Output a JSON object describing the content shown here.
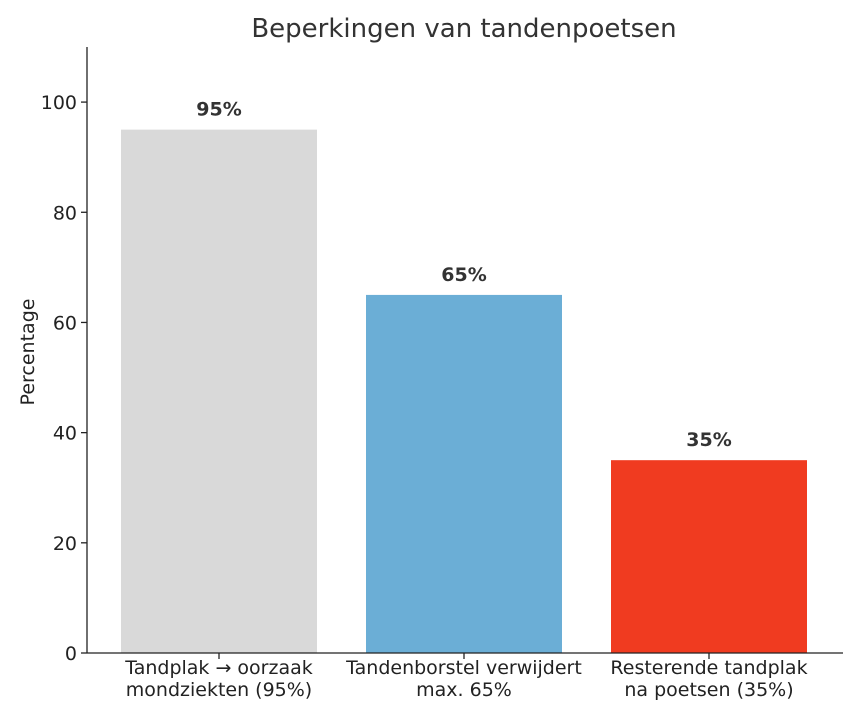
{
  "chart_data": {
    "type": "bar",
    "title": "Beperkingen van tandenpoetsen",
    "xlabel": "",
    "ylabel": "Percentage",
    "ylim": [
      0,
      110
    ],
    "yticks": [
      0,
      20,
      40,
      60,
      80,
      100
    ],
    "grid": false,
    "categories": [
      [
        "Tandplak → oorzaak",
        "mondziekten (95%)"
      ],
      [
        "Tandenborstel verwijdert",
        "max. 65%"
      ],
      [
        "Resterende tandplak",
        "na poetsen (35%)"
      ]
    ],
    "values": [
      95,
      65,
      35
    ],
    "data_labels": [
      "95%",
      "65%",
      "35%"
    ],
    "colors": [
      "#d9d9d9",
      "#6baed6",
      "#f03b20"
    ]
  }
}
